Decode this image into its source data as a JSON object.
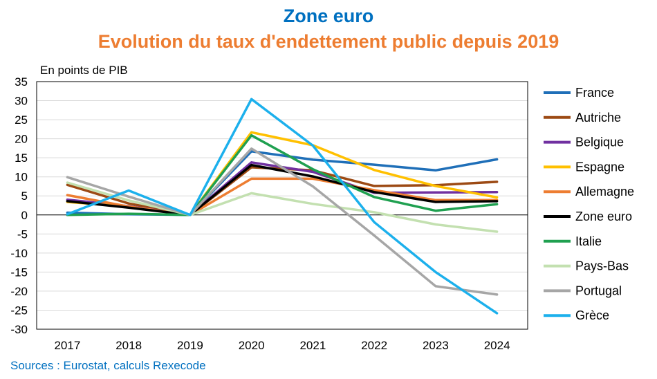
{
  "chart_data": {
    "type": "line",
    "title": "Zone euro",
    "subtitle": "Evolution du taux d'endettement public depuis 2019",
    "ylabel": "En points de PIB",
    "source": "Sources : Eurostat, calculs Rexecode",
    "categories": [
      "2017",
      "2018",
      "2019",
      "2020",
      "2021",
      "2022",
      "2023",
      "2024"
    ],
    "ylim": [
      -30,
      35
    ],
    "yticks": [
      35,
      30,
      25,
      20,
      15,
      10,
      5,
      0,
      -5,
      -10,
      -15,
      -20,
      -25,
      -30
    ],
    "legend_position": "right",
    "grid": true,
    "series": [
      {
        "name": "France",
        "color": "#1f6fb8",
        "values": [
          0.6,
          0.2,
          0,
          16.7,
          14.5,
          13.2,
          11.7,
          14.6
        ]
      },
      {
        "name": "Autriche",
        "color": "#9c4a14",
        "values": [
          7.9,
          3.0,
          0,
          12.5,
          11.7,
          7.6,
          7.8,
          8.7
        ]
      },
      {
        "name": "Belgique",
        "color": "#7030a0",
        "values": [
          4.0,
          2.3,
          0,
          13.8,
          11.3,
          5.8,
          5.9,
          6.0
        ]
      },
      {
        "name": "Espagne",
        "color": "#ffc000",
        "values": [
          3.4,
          2.2,
          0,
          21.7,
          18.3,
          11.8,
          7.6,
          4.6
        ]
      },
      {
        "name": "Allemagne",
        "color": "#ed7d31",
        "values": [
          5.2,
          2.2,
          0,
          9.5,
          9.5,
          6.5,
          3.9,
          3.9
        ]
      },
      {
        "name": "Zone euro",
        "color": "#000000",
        "values": [
          3.6,
          1.9,
          0,
          13.1,
          10.1,
          6.0,
          3.4,
          3.6
        ]
      },
      {
        "name": "Italie",
        "color": "#1fa050",
        "values": [
          0.0,
          0.3,
          0,
          20.9,
          12.0,
          4.7,
          1.1,
          2.8
        ]
      },
      {
        "name": "Pays-Bas",
        "color": "#c3e0b0",
        "values": [
          8.5,
          3.8,
          0,
          5.7,
          2.9,
          0.7,
          -2.5,
          -4.4
        ]
      },
      {
        "name": "Portugal",
        "color": "#a6a6a6",
        "values": [
          9.9,
          4.8,
          0,
          17.4,
          7.5,
          -5.4,
          -18.7,
          -20.9
        ]
      },
      {
        "name": "Grèce",
        "color": "#1cb0ec",
        "values": [
          0.2,
          6.4,
          0,
          30.4,
          18.2,
          -1.9,
          -15.0,
          -25.8
        ]
      }
    ]
  }
}
